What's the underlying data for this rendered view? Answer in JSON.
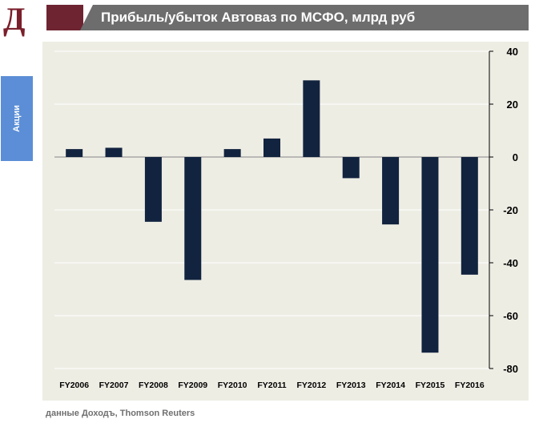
{
  "logo": {
    "text": "Д"
  },
  "header": {
    "title": "Прибыль/убыток Автоваз по МСФО, млрд руб"
  },
  "side_tab": {
    "label": "Акции"
  },
  "source": {
    "text": "данные Доходъ, Thomson Reuters"
  },
  "colors": {
    "bar": "#12233f",
    "panel": "#eeede4",
    "header": "#6d6d6d",
    "accent": "#6e2431",
    "tab": "#5b8ed6"
  },
  "chart_data": {
    "type": "bar",
    "title": "Прибыль/убыток Автоваз по МСФО, млрд руб",
    "categories": [
      "FY2006",
      "FY2007",
      "FY2008",
      "FY2009",
      "FY2010",
      "FY2011",
      "FY2012",
      "FY2013",
      "FY2014",
      "FY2015",
      "FY2016"
    ],
    "values": [
      3,
      3.5,
      -24.5,
      -46.5,
      3,
      7,
      29,
      -8,
      -25.5,
      -74,
      -44.5
    ],
    "ylim": [
      -80,
      40
    ],
    "yticks": [
      40,
      20,
      0,
      -20,
      -40,
      -60,
      -80
    ],
    "y_axis_position": "right",
    "grid": true
  }
}
